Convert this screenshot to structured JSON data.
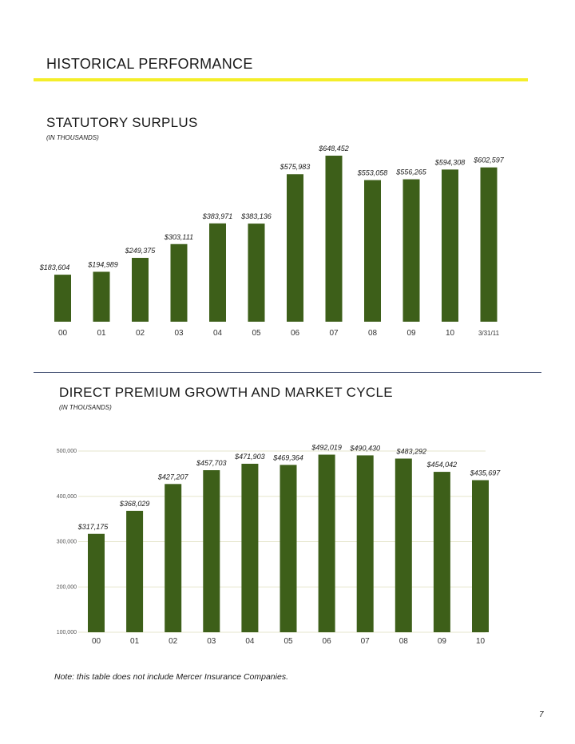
{
  "page": {
    "title": "HISTORICAL PERFORMANCE",
    "note": "Note: this table does not include Mercer Insurance Companies.",
    "page_number": "7"
  },
  "colors": {
    "bar": "#3d5f19",
    "rule": "#f4ee2a",
    "divider": "#3c4a6e"
  },
  "chart_data": [
    {
      "type": "bar",
      "title": "STATUTORY SURPLUS",
      "subtitle": "(IN THOUSANDS)",
      "categories": [
        "00",
        "01",
        "02",
        "03",
        "04",
        "05",
        "06",
        "07",
        "08",
        "09",
        "10",
        "3/31/11"
      ],
      "values": [
        183604,
        194989,
        249375,
        303111,
        383971,
        383136,
        575983,
        648452,
        553058,
        556265,
        594308,
        602597
      ],
      "data_labels": [
        "$183,604",
        "$194,989",
        "$249,375",
        "$303,111",
        "$383,971",
        "$383,136",
        "$575,983",
        "$648,452",
        "$553,058",
        "$556,265",
        "$594,308",
        "$602,597"
      ],
      "ylim": [
        0,
        648452
      ],
      "xlabel": "",
      "ylabel": "",
      "grid": false
    },
    {
      "type": "bar",
      "title": "DIRECT PREMIUM GROWTH AND MARKET CYCLE",
      "subtitle": "(IN THOUSANDS)",
      "categories": [
        "00",
        "01",
        "02",
        "03",
        "04",
        "05",
        "06",
        "07",
        "08",
        "09",
        "10"
      ],
      "values": [
        317175,
        368029,
        427207,
        457703,
        471903,
        469364,
        492019,
        490430,
        483292,
        454042,
        435697
      ],
      "data_labels": [
        "$317,175",
        "$368,029",
        "$427,207",
        "$457,703",
        "$471,903",
        "$469,364",
        "$492,019",
        "$490,430",
        "$483,292",
        "$454,042",
        "$435,697"
      ],
      "yticks": [
        "100,000",
        "200,000",
        "300,000",
        "400,000",
        "500,000"
      ],
      "ytick_values": [
        100000,
        200000,
        300000,
        400000,
        500000
      ],
      "ylim": [
        100000,
        500000
      ],
      "xlabel": "",
      "ylabel": "",
      "grid": true
    }
  ]
}
